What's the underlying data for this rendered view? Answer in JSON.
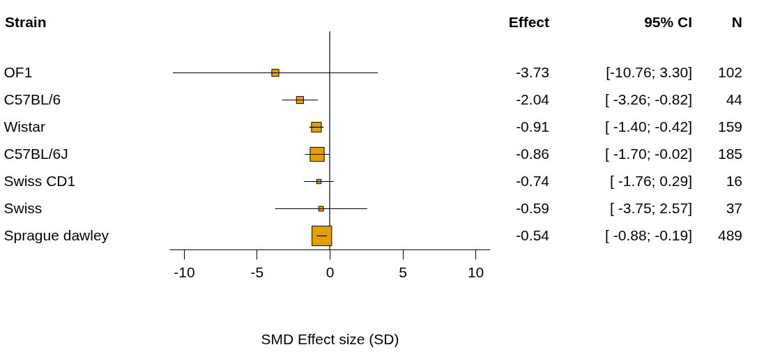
{
  "chart_data": {
    "type": "scatter",
    "orientation": "horizontal",
    "marker": "square",
    "legend": false,
    "grid": false,
    "ylabel": "Strain",
    "xlabel": "SMD Effect size (SD)",
    "categories": [
      "OF1",
      "C57BL/6",
      "Wistar",
      "C57BL/6J",
      "Swiss CD1",
      "Swiss",
      "Sprague dawley"
    ],
    "values": [
      -3.73,
      -2.04,
      -0.91,
      -0.86,
      -0.74,
      -0.59,
      -0.54
    ],
    "errors": [
      [
        -10.76,
        3.3
      ],
      [
        -3.26,
        -0.82
      ],
      [
        -1.4,
        -0.42
      ],
      [
        -1.7,
        -0.02
      ],
      [
        -1.76,
        0.29
      ],
      [
        -3.75,
        2.57
      ],
      [
        -0.88,
        -0.19
      ]
    ],
    "sizes": [
      0.13,
      0.13,
      0.25,
      0.51,
      0.05,
      0.06,
      1
    ],
    "color": "#e69f00",
    "data_labels": true,
    "xlim": [
      -11,
      11
    ],
    "xticks": [
      -10,
      -5,
      0,
      5,
      10
    ],
    "ref_lines": [
      {
        "axis": "x",
        "value": 0,
        "color": "#000000"
      }
    ],
    "annotations": [
      "Effect",
      "95% CI",
      "N",
      "[-10.76; 3.30]",
      "[ -3.26; -0.82]",
      "[ -1.40; -0.42]",
      "[ -1.70; -0.02]",
      "[ -1.76; 0.29]",
      "[ -3.75; 2.57]",
      "[ -0.88; -0.19]",
      "102",
      "44",
      "159",
      "185",
      "16",
      "37",
      "489"
    ]
  }
}
